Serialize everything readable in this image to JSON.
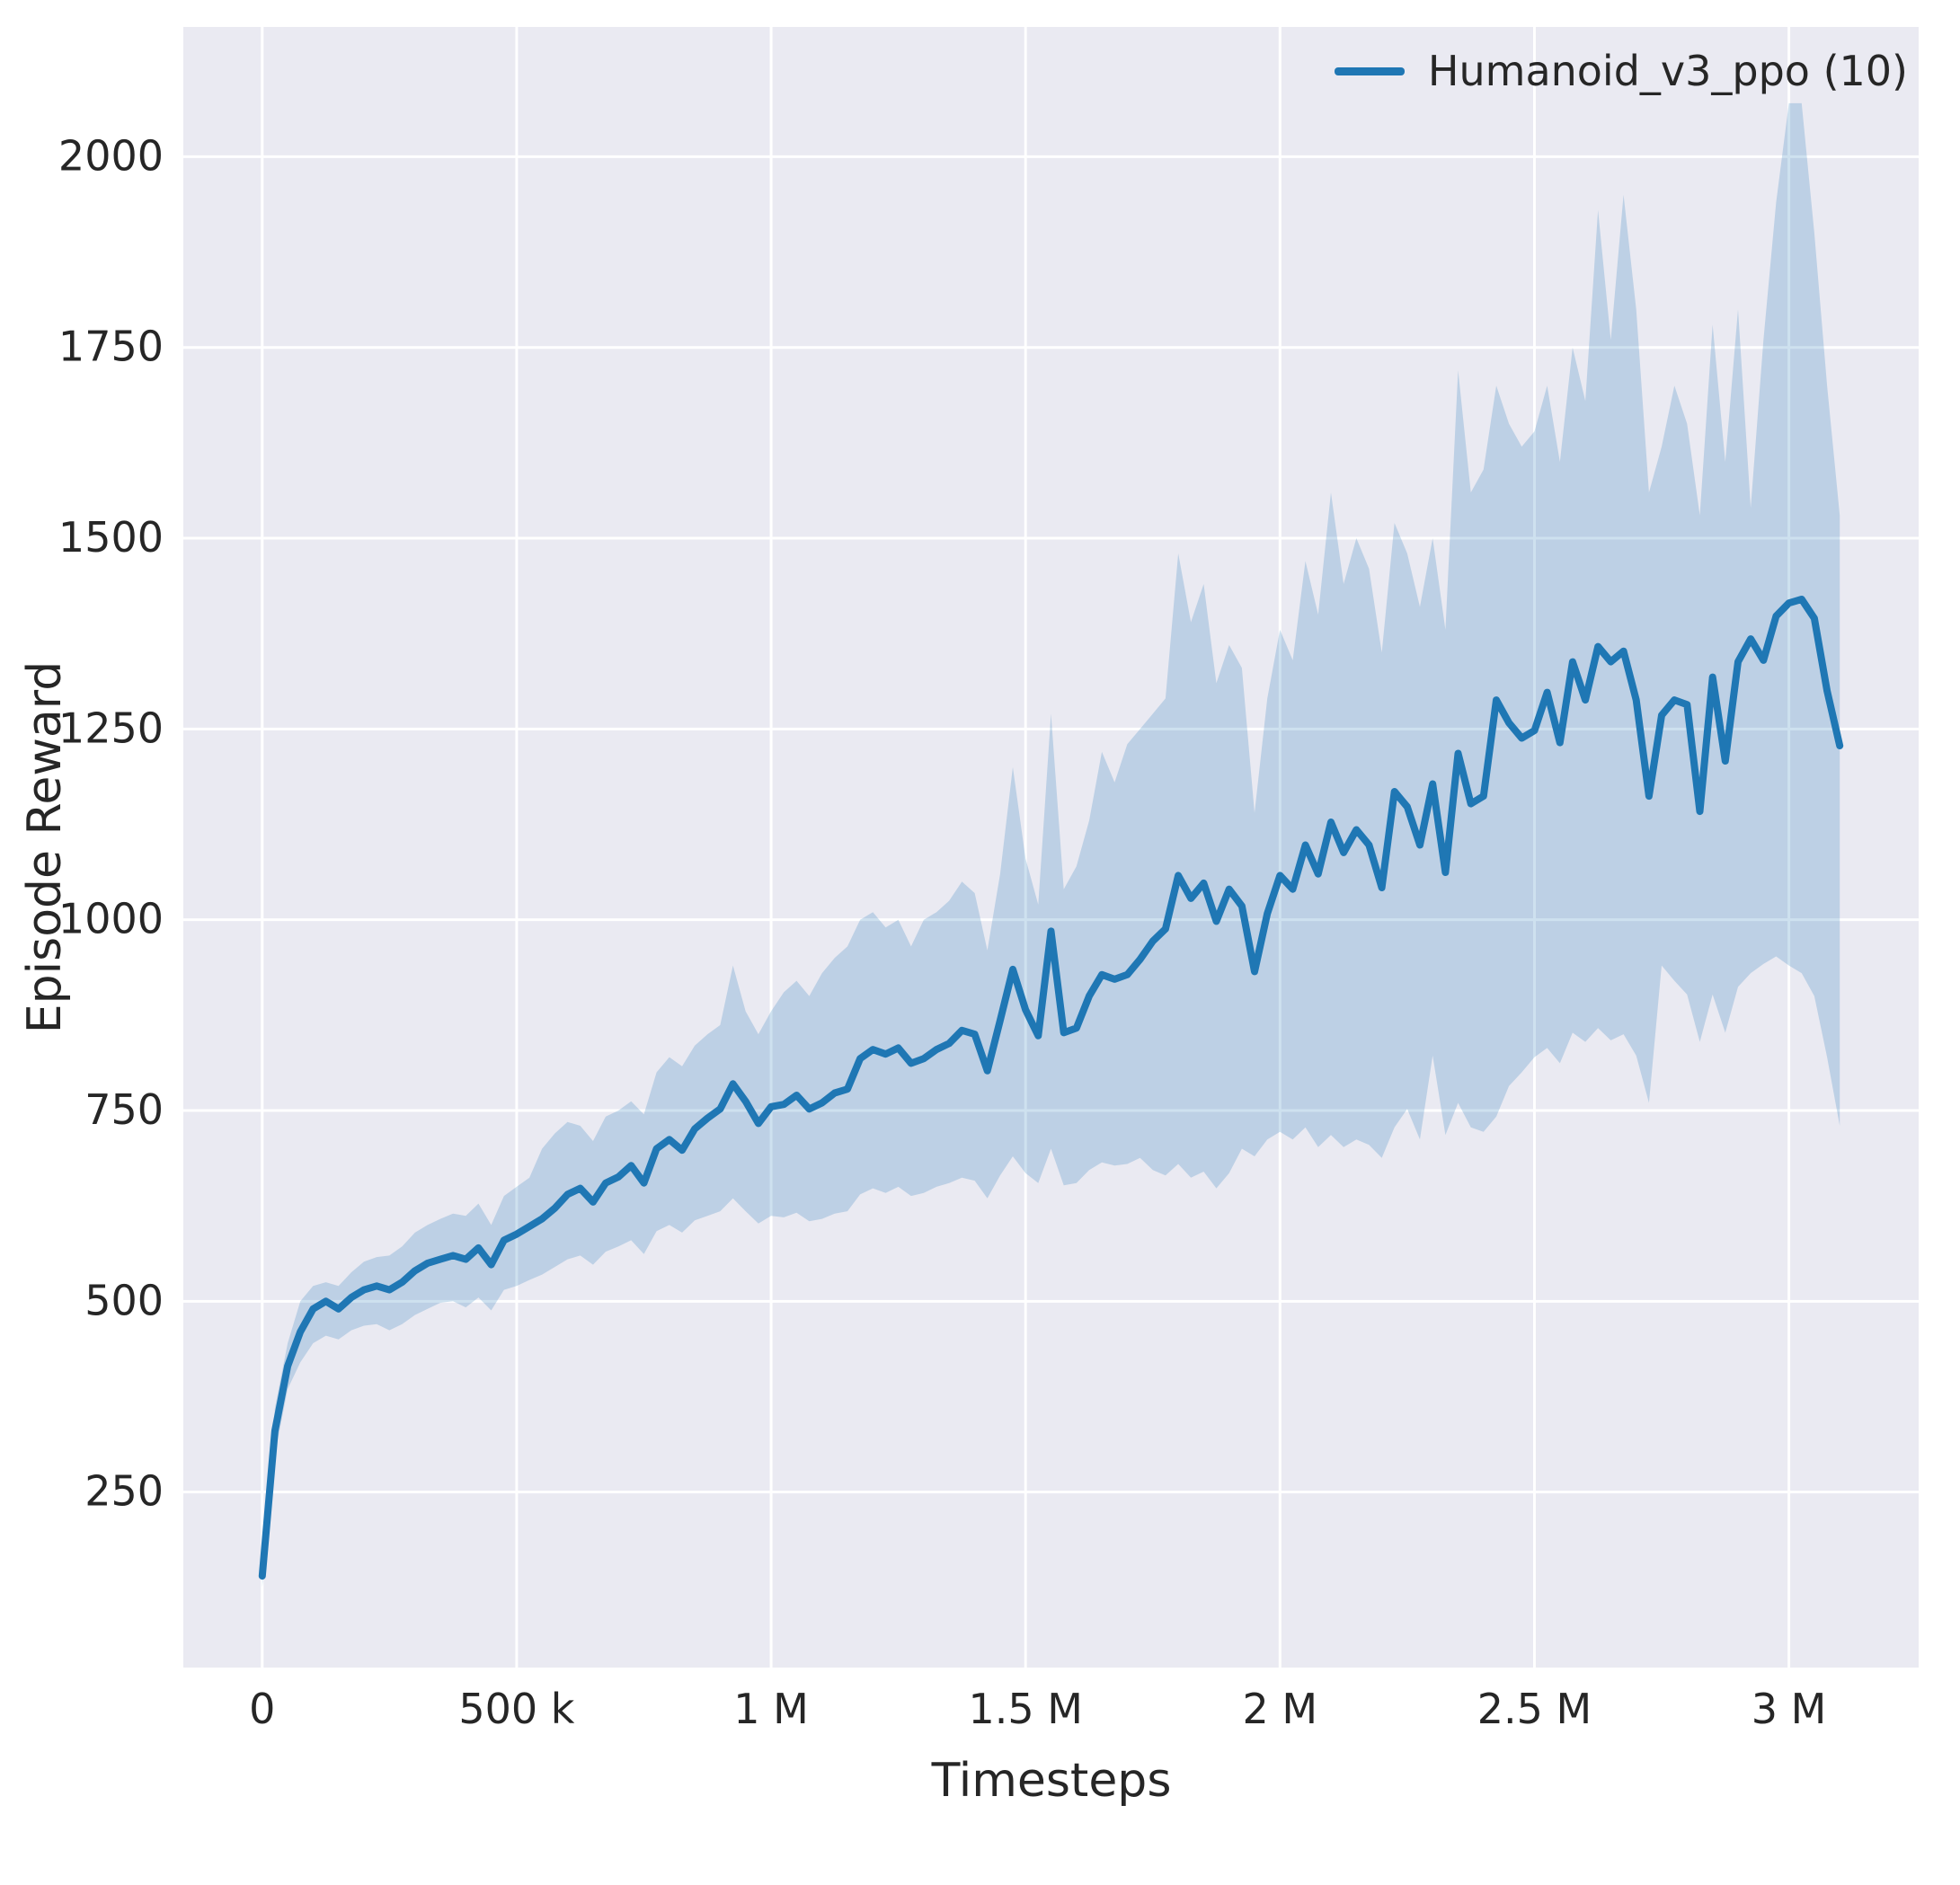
{
  "figure": {
    "axes_background": "#eaeaf2",
    "grid_color": "#ffffff",
    "text_color": "#262626",
    "accent_color": "#1f77b4"
  },
  "chart_data": {
    "type": "line",
    "xlabel": "Timesteps",
    "ylabel": "Episode Reward",
    "grid": true,
    "legend": {
      "position": "upper right",
      "entries": [
        {
          "label": "Humanoid_v3_ppo (10)",
          "color": "#1f77b4"
        }
      ]
    },
    "xlim": [
      -155000,
      3255000
    ],
    "ylim": [
      20,
      2170
    ],
    "xticks": {
      "values": [
        0,
        500000,
        1000000,
        1500000,
        2000000,
        2500000,
        3000000
      ],
      "labels": [
        "0",
        "500 k",
        "1 M",
        "1.5 M",
        "2 M",
        "2.5 M",
        "3 M"
      ]
    },
    "yticks": {
      "values": [
        250,
        500,
        750,
        1000,
        1250,
        1500,
        1750,
        2000
      ],
      "labels": [
        "250",
        "500",
        "750",
        "1000",
        "1250",
        "1500",
        "1750",
        "2000"
      ]
    },
    "series": [
      {
        "name": "Humanoid_v3_ppo (10)",
        "color": "#1f77b4",
        "band_alpha": 0.22,
        "line_width": 8,
        "x": [
          0,
          25000,
          50000,
          75000,
          100000,
          125000,
          150000,
          175000,
          200000,
          225000,
          250000,
          275000,
          300000,
          325000,
          350000,
          375000,
          400000,
          425000,
          450000,
          475000,
          500000,
          525000,
          550000,
          575000,
          600000,
          625000,
          650000,
          675000,
          700000,
          725000,
          750000,
          775000,
          800000,
          825000,
          850000,
          875000,
          900000,
          925000,
          950000,
          975000,
          1000000,
          1025000,
          1050000,
          1075000,
          1100000,
          1125000,
          1150000,
          1175000,
          1200000,
          1225000,
          1250000,
          1275000,
          1300000,
          1325000,
          1350000,
          1375000,
          1400000,
          1425000,
          1450000,
          1475000,
          1500000,
          1525000,
          1550000,
          1575000,
          1600000,
          1625000,
          1650000,
          1675000,
          1700000,
          1725000,
          1750000,
          1775000,
          1800000,
          1825000,
          1850000,
          1875000,
          1900000,
          1925000,
          1950000,
          1975000,
          2000000,
          2025000,
          2050000,
          2075000,
          2100000,
          2125000,
          2150000,
          2175000,
          2200000,
          2225000,
          2250000,
          2275000,
          2300000,
          2325000,
          2350000,
          2375000,
          2400000,
          2425000,
          2450000,
          2475000,
          2500000,
          2525000,
          2550000,
          2575000,
          2600000,
          2625000,
          2650000,
          2675000,
          2700000,
          2725000,
          2750000,
          2775000,
          2800000,
          2825000,
          2850000,
          2875000,
          2900000,
          2925000,
          2950000,
          2975000,
          3000000,
          3025000,
          3050000,
          3075000,
          3100000
        ],
        "mean": [
          140,
          330,
          415,
          460,
          490,
          500,
          490,
          505,
          515,
          520,
          515,
          525,
          540,
          550,
          555,
          560,
          555,
          570,
          548,
          580,
          588,
          598,
          608,
          622,
          640,
          648,
          630,
          655,
          663,
          678,
          655,
          700,
          712,
          698,
          726,
          740,
          752,
          785,
          762,
          733,
          755,
          758,
          770,
          752,
          760,
          773,
          778,
          818,
          830,
          824,
          832,
          812,
          818,
          830,
          838,
          855,
          850,
          802,
          868,
          935,
          882,
          848,
          985,
          852,
          858,
          900,
          928,
          922,
          928,
          948,
          972,
          988,
          1058,
          1028,
          1048,
          998,
          1040,
          1018,
          932,
          1008,
          1058,
          1040,
          1098,
          1060,
          1128,
          1088,
          1118,
          1098,
          1042,
          1168,
          1148,
          1098,
          1178,
          1062,
          1218,
          1152,
          1162,
          1288,
          1258,
          1238,
          1248,
          1298,
          1232,
          1338,
          1288,
          1358,
          1338,
          1352,
          1288,
          1162,
          1268,
          1288,
          1282,
          1142,
          1318,
          1208,
          1338,
          1368,
          1340,
          1398,
          1415,
          1420,
          1395,
          1300,
          1228
        ],
        "band_lower": [
          125,
          300,
          385,
          420,
          445,
          455,
          450,
          462,
          468,
          470,
          462,
          470,
          482,
          490,
          498,
          500,
          492,
          505,
          488,
          515,
          520,
          528,
          535,
          545,
          555,
          560,
          548,
          565,
          572,
          580,
          562,
          592,
          600,
          590,
          606,
          612,
          618,
          635,
          618,
          602,
          612,
          610,
          616,
          605,
          608,
          615,
          618,
          640,
          648,
          642,
          650,
          638,
          642,
          650,
          655,
          662,
          658,
          635,
          665,
          690,
          668,
          655,
          700,
          652,
          655,
          672,
          682,
          678,
          680,
          688,
          672,
          665,
          680,
          662,
          670,
          648,
          668,
          700,
          690,
          712,
          722,
          712,
          728,
          702,
          718,
          702,
          712,
          705,
          688,
          728,
          752,
          712,
          822,
          718,
          760,
          728,
          722,
          742,
          782,
          800,
          820,
          832,
          812,
          852,
          840,
          858,
          842,
          850,
          822,
          760,
          940,
          920,
          902,
          840,
          902,
          852,
          912,
          930,
          942,
          952,
          940,
          930,
          900,
          820,
          730
        ],
        "band_upper": [
          155,
          360,
          445,
          500,
          520,
          525,
          520,
          538,
          552,
          558,
          560,
          572,
          590,
          600,
          608,
          615,
          612,
          628,
          600,
          638,
          650,
          662,
          700,
          720,
          735,
          730,
          710,
          742,
          750,
          762,
          745,
          800,
          820,
          808,
          835,
          850,
          862,
          940,
          880,
          850,
          880,
          905,
          920,
          900,
          930,
          950,
          965,
          1000,
          1010,
          990,
          1000,
          965,
          1000,
          1010,
          1025,
          1050,
          1035,
          960,
          1060,
          1200,
          1080,
          1020,
          1270,
          1040,
          1070,
          1130,
          1220,
          1180,
          1230,
          1250,
          1270,
          1290,
          1480,
          1390,
          1440,
          1310,
          1360,
          1330,
          1140,
          1290,
          1380,
          1340,
          1470,
          1400,
          1560,
          1440,
          1500,
          1460,
          1350,
          1520,
          1480,
          1410,
          1500,
          1380,
          1720,
          1560,
          1590,
          1700,
          1650,
          1620,
          1640,
          1700,
          1600,
          1750,
          1680,
          1930,
          1760,
          1950,
          1800,
          1560,
          1620,
          1700,
          1650,
          1530,
          1780,
          1600,
          1800,
          1540,
          1760,
          1940,
          2070,
          2070,
          1900,
          1700,
          1530
        ]
      }
    ]
  }
}
